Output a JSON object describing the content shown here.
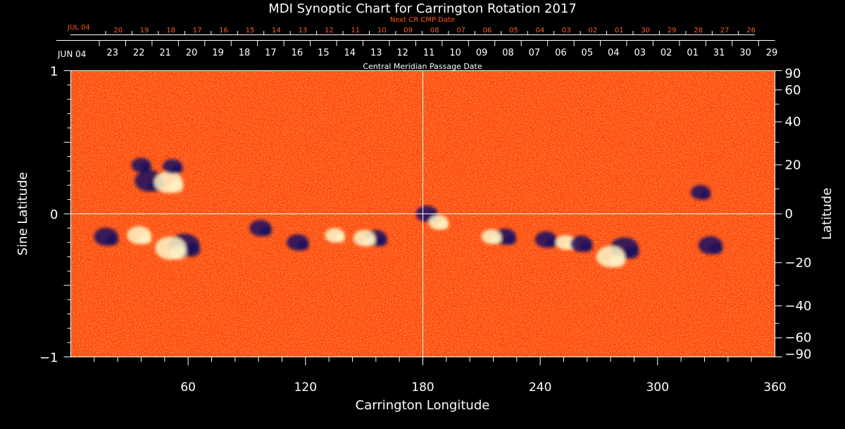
{
  "figure": {
    "title": "MDI Synoptic Chart for Carrington Rotation 2017",
    "next_cr_label": "Next CR CMP Date",
    "cmp_label": "Central Meridian Passage Date",
    "xlabel": "Carrington Longitude",
    "ylabel_left": "Sine Latitude",
    "ylabel_right": "Latitude",
    "colors": {
      "background": "#000000",
      "map_base": "#ff4a0c",
      "positive_flux": "#fff6c8",
      "negative_flux": "#1a1060",
      "next_cr_text": "#ff5a1f",
      "axis": "#ffffff"
    }
  },
  "chart_data": {
    "type": "heatmap",
    "title": "MDI Synoptic Chart for Carrington Rotation 2017",
    "xlabel": "Carrington Longitude",
    "ylabel": "Sine Latitude",
    "y2label": "Latitude",
    "xlim": [
      0,
      360
    ],
    "ylim": [
      -1,
      1
    ],
    "x_ticks": [
      60,
      120,
      180,
      240,
      300,
      360
    ],
    "x_ticks_minor_step": 12,
    "y_ticks_left": [
      {
        "value": 1,
        "label": "1"
      },
      {
        "value": 0,
        "label": "0"
      },
      {
        "value": -1,
        "label": "−1"
      }
    ],
    "y_ticks_right": [
      90,
      60,
      40,
      20,
      0,
      -20,
      -40,
      -60,
      -90
    ],
    "grid": {
      "vertical_at_longitude": 180,
      "horizontal_at_sine_latitude": 0
    },
    "top_axis_cmp": {
      "start_label": "JUN 04",
      "labels": [
        "23",
        "22",
        "21",
        "20",
        "19",
        "18",
        "17",
        "16",
        "15",
        "14",
        "13",
        "12",
        "11",
        "10",
        "09",
        "08",
        "07",
        "06",
        "05",
        "04",
        "03",
        "02",
        "01",
        "31",
        "30",
        "29"
      ]
    },
    "top_axis_next_cr": {
      "start_label": "JUL 04",
      "labels": [
        "20",
        "19",
        "18",
        "17",
        "16",
        "15",
        "14",
        "13",
        "12",
        "11",
        "10",
        "09",
        "08",
        "07",
        "06",
        "05",
        "04",
        "03",
        "02",
        "01",
        "30",
        "29",
        "28",
        "27",
        "26"
      ]
    },
    "active_regions": [
      {
        "lon": 40,
        "sinlat": 0.23,
        "polarity": "negative",
        "strength": 0.9
      },
      {
        "lon": 50,
        "sinlat": 0.22,
        "polarity": "positive",
        "strength": 0.9
      },
      {
        "lon": 58,
        "sinlat": -0.22,
        "polarity": "negative",
        "strength": 1.0
      },
      {
        "lon": 51,
        "sinlat": -0.24,
        "polarity": "positive",
        "strength": 1.0
      },
      {
        "lon": 18,
        "sinlat": -0.16,
        "polarity": "negative",
        "strength": 0.7
      },
      {
        "lon": 35,
        "sinlat": -0.15,
        "polarity": "positive",
        "strength": 0.7
      },
      {
        "lon": 97,
        "sinlat": -0.1,
        "polarity": "negative",
        "strength": 0.6
      },
      {
        "lon": 116,
        "sinlat": -0.2,
        "polarity": "negative",
        "strength": 0.6
      },
      {
        "lon": 135,
        "sinlat": -0.15,
        "polarity": "positive",
        "strength": 0.5
      },
      {
        "lon": 156,
        "sinlat": -0.17,
        "polarity": "negative",
        "strength": 0.6
      },
      {
        "lon": 150,
        "sinlat": -0.17,
        "polarity": "positive",
        "strength": 0.6
      },
      {
        "lon": 182,
        "sinlat": 0.0,
        "polarity": "negative",
        "strength": 0.6
      },
      {
        "lon": 188,
        "sinlat": -0.06,
        "polarity": "positive",
        "strength": 0.5
      },
      {
        "lon": 222,
        "sinlat": -0.16,
        "polarity": "negative",
        "strength": 0.6
      },
      {
        "lon": 215,
        "sinlat": -0.16,
        "polarity": "positive",
        "strength": 0.5
      },
      {
        "lon": 243,
        "sinlat": -0.18,
        "polarity": "negative",
        "strength": 0.6
      },
      {
        "lon": 253,
        "sinlat": -0.2,
        "polarity": "positive",
        "strength": 0.5
      },
      {
        "lon": 261,
        "sinlat": -0.21,
        "polarity": "negative",
        "strength": 0.6
      },
      {
        "lon": 283,
        "sinlat": -0.24,
        "polarity": "negative",
        "strength": 0.9
      },
      {
        "lon": 276,
        "sinlat": -0.3,
        "polarity": "positive",
        "strength": 0.9
      },
      {
        "lon": 327,
        "sinlat": -0.22,
        "polarity": "negative",
        "strength": 0.7
      },
      {
        "lon": 322,
        "sinlat": 0.15,
        "polarity": "negative",
        "strength": 0.5
      },
      {
        "lon": 36,
        "sinlat": 0.34,
        "polarity": "negative",
        "strength": 0.5
      },
      {
        "lon": 52,
        "sinlat": 0.33,
        "polarity": "negative",
        "strength": 0.5
      }
    ]
  }
}
